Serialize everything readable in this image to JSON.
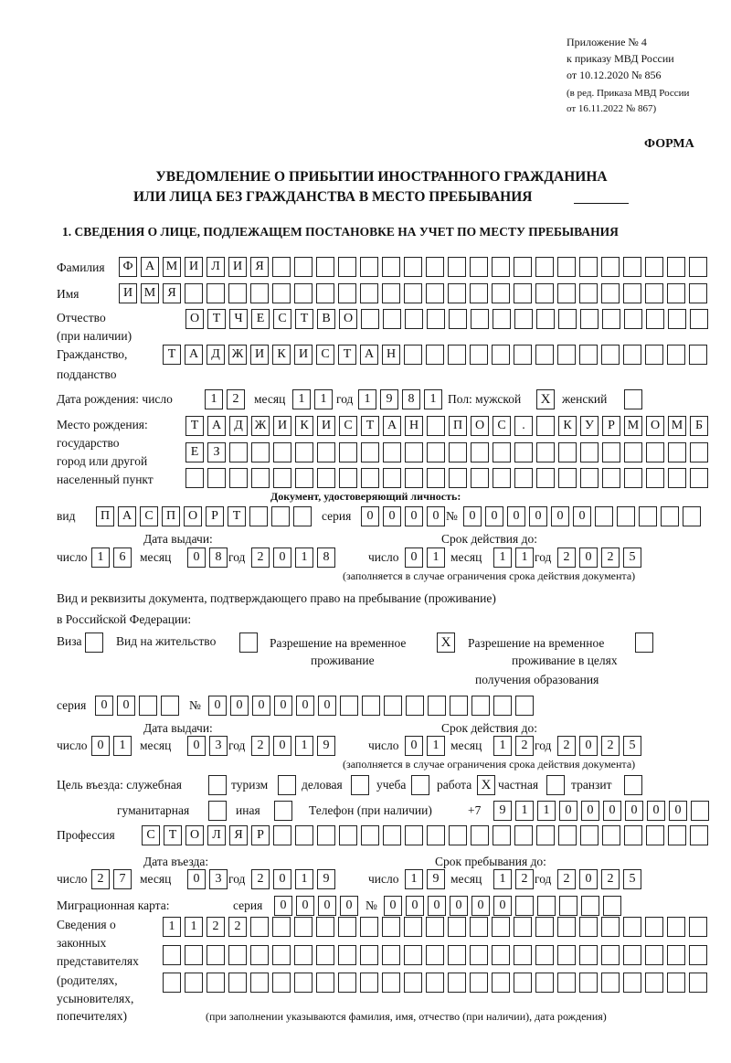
{
  "header": {
    "line1": "Приложение № 4",
    "line2": "к приказу МВД России",
    "line3": "от 10.12.2020 № 856",
    "line4": "(в ред. Приказа МВД России",
    "line5": "от 16.11.2022 № 867)",
    "forma": "ФОРМА",
    "title1": "УВЕДОМЛЕНИЕ О ПРИБЫТИИ ИНОСТРАННОГО ГРАЖДАНИНА",
    "title2": "ИЛИ ЛИЦА БЕЗ ГРАЖДАНСТВА В МЕСТО ПРЕБЫВАНИЯ",
    "section1": "1. СВЕДЕНИЯ О ЛИЦЕ, ПОДЛЕЖАЩЕМ ПОСТАНОВКЕ НА УЧЕТ ПО МЕСТУ ПРЕБЫВАНИЯ"
  },
  "person": {
    "surname_label": "Фамилия",
    "surname": "ФАМИЛИЯ",
    "name_label": "Имя",
    "name": "ИМЯ",
    "patronymic_label1": "Отчество",
    "patronymic_label2": "(при наличии)",
    "patronymic": "ОТЧЕСТВО",
    "citizenship_label1": "Гражданство,",
    "citizenship_label2": "подданство",
    "citizenship": "ТАДЖИКИСТАН",
    "birth_label": "Дата рождения:  число",
    "month_label": "месяц",
    "year_label": "год",
    "birth_day": "12",
    "birth_month": "11",
    "birth_year": "1981",
    "sex_label": "Пол: мужской",
    "male": "X",
    "female_label": "женский",
    "female": "",
    "birthplace_label1": "Место рождения:",
    "birthplace_label2": "государство",
    "birthplace_label3": "город или другой",
    "birthplace_label4": "населенный пункт",
    "birthplace_row1": "ТАДЖИКИСТАН ПОС. КУРМОМБ",
    "birthplace_row2": "ЕЗ",
    "birthplace_row3": ""
  },
  "id_doc": {
    "heading": "Документ, удостоверяющий личность:",
    "kind_label": "вид",
    "kind": "ПАСПОРТ",
    "series_label": "серия",
    "series": "0000",
    "number_label": "№",
    "number": "000000",
    "issue_label": "Дата выдачи:",
    "valid_label": "Срок действия до:",
    "day_label": "число",
    "month_label": "месяц",
    "year_label": "год",
    "issue_day": "16",
    "issue_month": "08",
    "issue_year": "2018",
    "valid_day": "01",
    "valid_month": "11",
    "valid_year": "2025",
    "note": "(заполняется в случае ограничения срока действия документа)"
  },
  "stay_doc": {
    "heading1": "Вид и реквизиты документа, подтверждающего право на пребывание (проживание)",
    "heading2": "в Российской Федерации:",
    "visa_label": "Виза",
    "visa": "",
    "residence_label": "Вид на жительство",
    "residence": "",
    "temp_label1": "Разрешение на временное",
    "temp_label2": "проживание",
    "temp": "X",
    "edu_label1": "Разрешение на временное",
    "edu_label2": "проживание в целях",
    "edu_label3": "получения образования",
    "edu": "",
    "series_label": "серия",
    "series": "00",
    "number_label": "№",
    "number": "000000",
    "issue_label": "Дата выдачи:",
    "valid_label": "Срок действия до:",
    "day_label": "число",
    "month_label": "месяц",
    "year_label": "год",
    "issue_day": "01",
    "issue_month": "03",
    "issue_year": "2019",
    "valid_day": "01",
    "valid_month": "12",
    "valid_year": "2025",
    "note": "(заполняется в случае ограничения срока действия документа)"
  },
  "purpose": {
    "label": "Цель въезда: служебная",
    "service": "",
    "tourism_label": "туризм",
    "tourism": "",
    "business_label": "деловая",
    "business": "",
    "study_label": "учеба",
    "study": "",
    "work_label": "работа",
    "work": "X",
    "private_label": "частная",
    "private": "",
    "transit_label": "транзит",
    "transit": "",
    "humanitarian_label": "гуманитарная",
    "humanitarian": "",
    "other_label": "иная",
    "other": ""
  },
  "phone": {
    "label": "Телефон (при наличии)",
    "prefix": "+7",
    "value": "911000000"
  },
  "profession": {
    "label": "Профессия",
    "value": "СТОЛЯР"
  },
  "entry": {
    "entry_label": "Дата въезда:",
    "stay_label": "Срок пребывания до:",
    "day_label": "число",
    "month_label": "месяц",
    "year_label": "год",
    "entry_day": "27",
    "entry_month": "03",
    "entry_year": "2019",
    "stay_day": "19",
    "stay_month": "12",
    "stay_year": "2025"
  },
  "migration_card": {
    "label": "Миграционная карта:",
    "series_label": "серия",
    "series": "0000",
    "number_label": "№",
    "number": "000000"
  },
  "representatives": {
    "label1": "Сведения о",
    "label2": "законных",
    "label3": "представителях",
    "label4": "(родителях,",
    "label5": "усыновителях,",
    "label6": "попечителях)",
    "row1": "1122",
    "row2": "",
    "row3": "",
    "note": "(при заполнении указываются фамилия, имя, отчество (при наличии), дата рождения)"
  }
}
